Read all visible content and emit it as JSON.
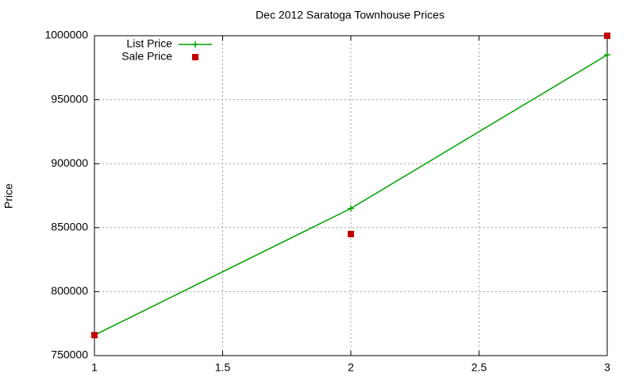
{
  "chart_data": {
    "type": "line",
    "title": "Dec 2012 Saratoga Townhouse Prices",
    "y_label": "Price",
    "x": [
      1,
      2,
      3
    ],
    "series": [
      {
        "name": "List Price",
        "color": "#00a000",
        "mode": "lines+points",
        "values": [
          766000,
          865000,
          985000
        ]
      },
      {
        "name": "Sale Price",
        "color": "#c00000",
        "mode": "points",
        "values": [
          766000,
          845000,
          1000000
        ]
      }
    ],
    "xlim": [
      1,
      3
    ],
    "xticks": [
      1,
      1.5,
      2,
      2.5,
      3
    ],
    "ylim": [
      750000,
      1000000
    ],
    "yticks": [
      750000,
      800000,
      850000,
      900000,
      950000,
      1000000
    ],
    "grid": true,
    "legend": "top-left"
  }
}
